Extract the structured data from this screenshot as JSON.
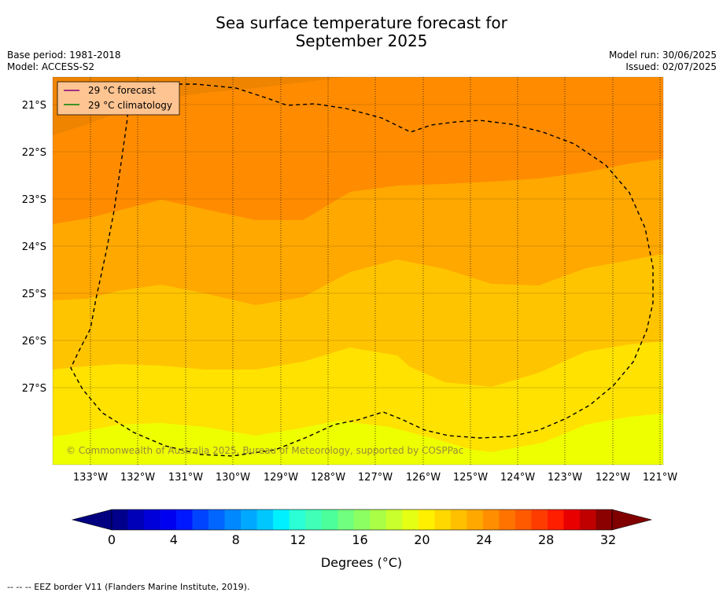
{
  "title_line1": "Sea surface temperature forecast for",
  "title_line2": "September 2025",
  "meta_left": [
    "Base period: 1981-2018",
    "Model: ACCESS-S2"
  ],
  "meta_right": [
    "Model run: 30/06/2025",
    "Issued: 02/07/2025"
  ],
  "legend": [
    {
      "label": "29 °C  forecast",
      "color": "#800080"
    },
    {
      "label": "29 °C  climatology",
      "color": "#008000"
    }
  ],
  "copyright": "© Commonwealth of Australia 2025, Bureau of Meteorology, supported by COSPPac",
  "lon_labels": [
    "133°W",
    "132°W",
    "131°W",
    "130°W",
    "129°W",
    "128°W",
    "127°W",
    "126°W",
    "125°W",
    "124°W",
    "123°W",
    "122°W",
    "121°W"
  ],
  "lat_labels": [
    "21°S",
    "22°S",
    "23°S",
    "24°S",
    "25°S",
    "26°S",
    "27°S"
  ],
  "colorbar": {
    "ticks": [
      "0",
      "4",
      "8",
      "12",
      "16",
      "20",
      "24",
      "28",
      "32"
    ],
    "label": "Degrees (°C)",
    "colors": [
      "#00008b",
      "#0000b8",
      "#0000d8",
      "#0000f0",
      "#0018ff",
      "#0044ff",
      "#0066ff",
      "#0088ff",
      "#00a8ff",
      "#00c8ff",
      "#00f0ff",
      "#2affd6",
      "#40ffb6",
      "#4cff9a",
      "#70ff7e",
      "#8cff62",
      "#aaff46",
      "#c8ff2c",
      "#e4ff14",
      "#fff000",
      "#ffd800",
      "#ffc000",
      "#ffa800",
      "#ff8e00",
      "#ff7400",
      "#ff5a00",
      "#ff3c00",
      "#ff1e00",
      "#e80000",
      "#c00000",
      "#8b0000"
    ],
    "under_color": "#000080",
    "over_color": "#800000"
  },
  "zones": [
    "#ee8400",
    "#ff8c00",
    "#ffa800",
    "#ffc400",
    "#ffe200",
    "#eeff00"
  ],
  "footer": "--  --  -- EEZ border V11 (Flanders Marine Institute, 2019)."
}
